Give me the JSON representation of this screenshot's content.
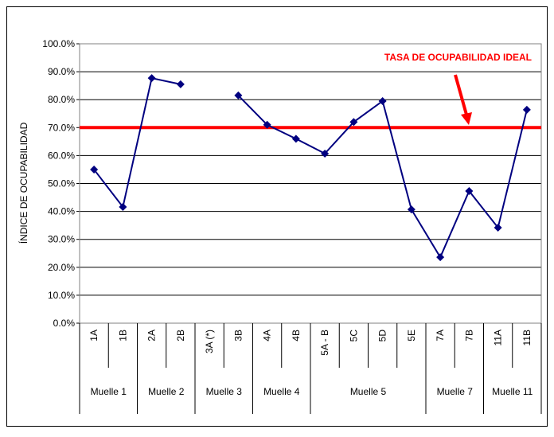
{
  "chart_data": {
    "type": "line",
    "y_label": "ÍNDICE DE OCUPABILIDAD",
    "categories": [
      "1A",
      "1B",
      "2A",
      "2B",
      "3A (*)",
      "3B",
      "4A",
      "4B",
      "5A - B",
      "5C",
      "5D",
      "5E",
      "7A",
      "7B",
      "11A",
      "11B"
    ],
    "groups": [
      {
        "label": "Muelle 1",
        "span": 2
      },
      {
        "label": "Muelle 2",
        "span": 2
      },
      {
        "label": "Muelle 3",
        "span": 2
      },
      {
        "label": "Muelle 4",
        "span": 2
      },
      {
        "label": "Muelle 5",
        "span": 4
      },
      {
        "label": "Muelle 7",
        "span": 2
      },
      {
        "label": "Muelle 11",
        "span": 2
      }
    ],
    "series": [
      {
        "color": "#000080",
        "values": [
          55.0,
          41.6,
          87.7,
          85.5,
          null,
          81.5,
          71.0,
          66.0,
          60.7,
          72.0,
          79.5,
          40.7,
          23.6,
          47.3,
          34.2,
          76.4
        ]
      }
    ],
    "reference": {
      "value": 70,
      "color": "#ff0000",
      "label": "TASA DE OCUPABILIDAD IDEAL"
    },
    "ylim": [
      0,
      100
    ],
    "yticks": [
      {
        "value": 0,
        "label": "0.0%"
      },
      {
        "value": 10,
        "label": "10.0%"
      },
      {
        "value": 20,
        "label": "20.0%"
      },
      {
        "value": 30,
        "label": "30.0%"
      },
      {
        "value": 40,
        "label": "40.0%"
      },
      {
        "value": 50,
        "label": "50.0%"
      },
      {
        "value": 60,
        "label": "60.0%"
      },
      {
        "value": 70,
        "label": "70.0%"
      },
      {
        "value": 80,
        "label": "80.0%"
      },
      {
        "value": 90,
        "label": "90.0%"
      },
      {
        "value": 100,
        "label": "100.0%"
      }
    ],
    "grid": true
  }
}
